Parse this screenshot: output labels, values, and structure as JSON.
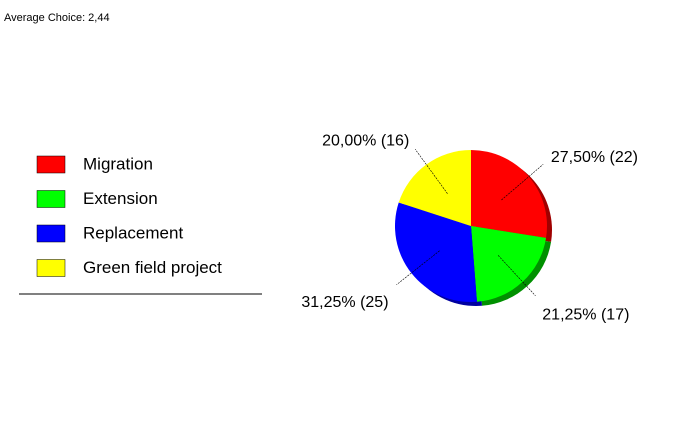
{
  "chart_data": {
    "type": "pie",
    "title": "Average Choice: 2,44",
    "categories": [
      "Migration",
      "Extension",
      "Replacement",
      "Green field project"
    ],
    "values": [
      27.5,
      21.25,
      31.25,
      20
    ],
    "value_labels": [
      "27,50% (22)",
      "21,25% (17)",
      "31,25% (25)",
      "20,00% (16)"
    ],
    "colors": [
      "#ff0000",
      "#00ff00",
      "#0000ff",
      "#ffff00"
    ],
    "shadow_colors": [
      "#a00000",
      "#009000",
      "#0000a0",
      "#a0a000"
    ],
    "legend": "left"
  }
}
